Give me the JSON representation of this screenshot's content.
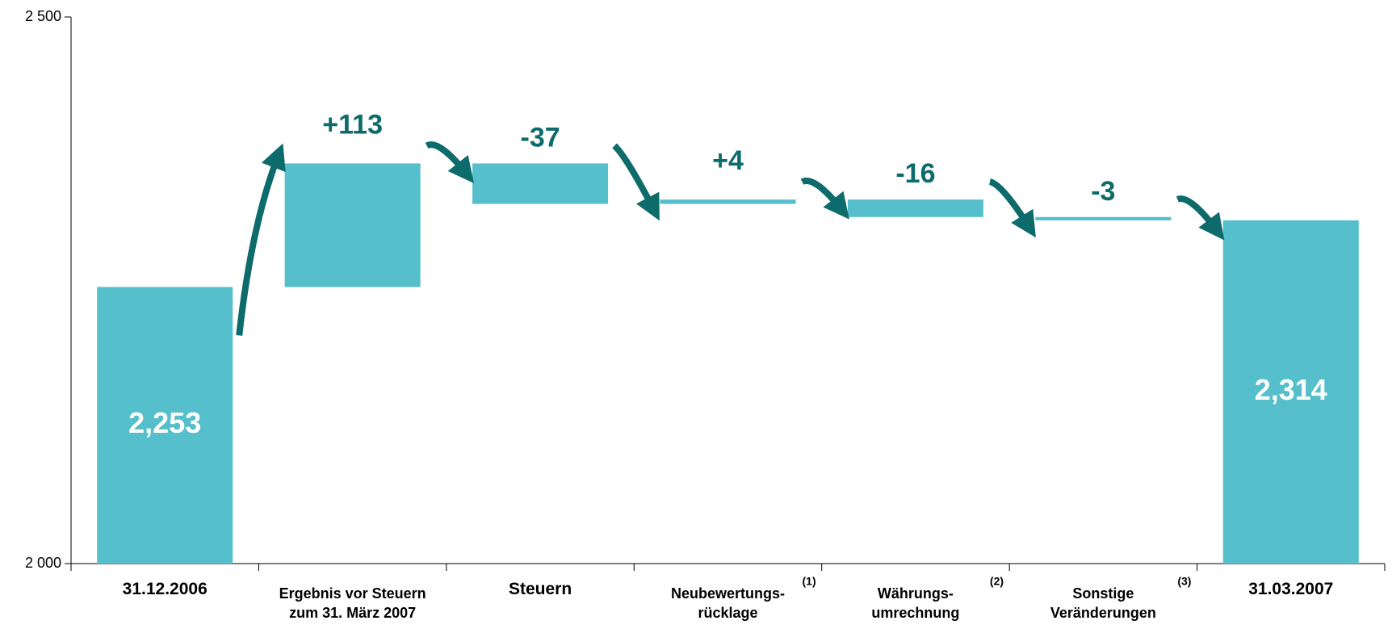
{
  "chart_data": {
    "type": "waterfall",
    "categories": [
      "31.12.2006",
      "Ergebnis vor Steuern\nzum 31. März 2007",
      "Steuern",
      "Neubewertungs-\nrücklage",
      "Währungs-\numrechnung",
      "Sonstige\nVeränderungen",
      "31.03.2007"
    ],
    "category_notes": [
      null,
      null,
      null,
      "(1)",
      "(2)",
      "(3)",
      null
    ],
    "measures": [
      "total",
      "relative",
      "relative",
      "relative",
      "relative",
      "relative",
      "total"
    ],
    "values": [
      2253,
      113,
      -37,
      4,
      -16,
      -3,
      2314
    ],
    "value_labels": [
      "2,253",
      "+113",
      "-37",
      "+4",
      "-16",
      "-3",
      "2,314"
    ],
    "color": "#56bfcc",
    "label_color": "#0e6b6b",
    "total_label_color": "#ffffff",
    "ylim": [
      2000,
      2500
    ],
    "yticks": [
      {
        "value": 2000,
        "label": "2 000"
      },
      {
        "value": 2500,
        "label": "2 500"
      }
    ]
  }
}
